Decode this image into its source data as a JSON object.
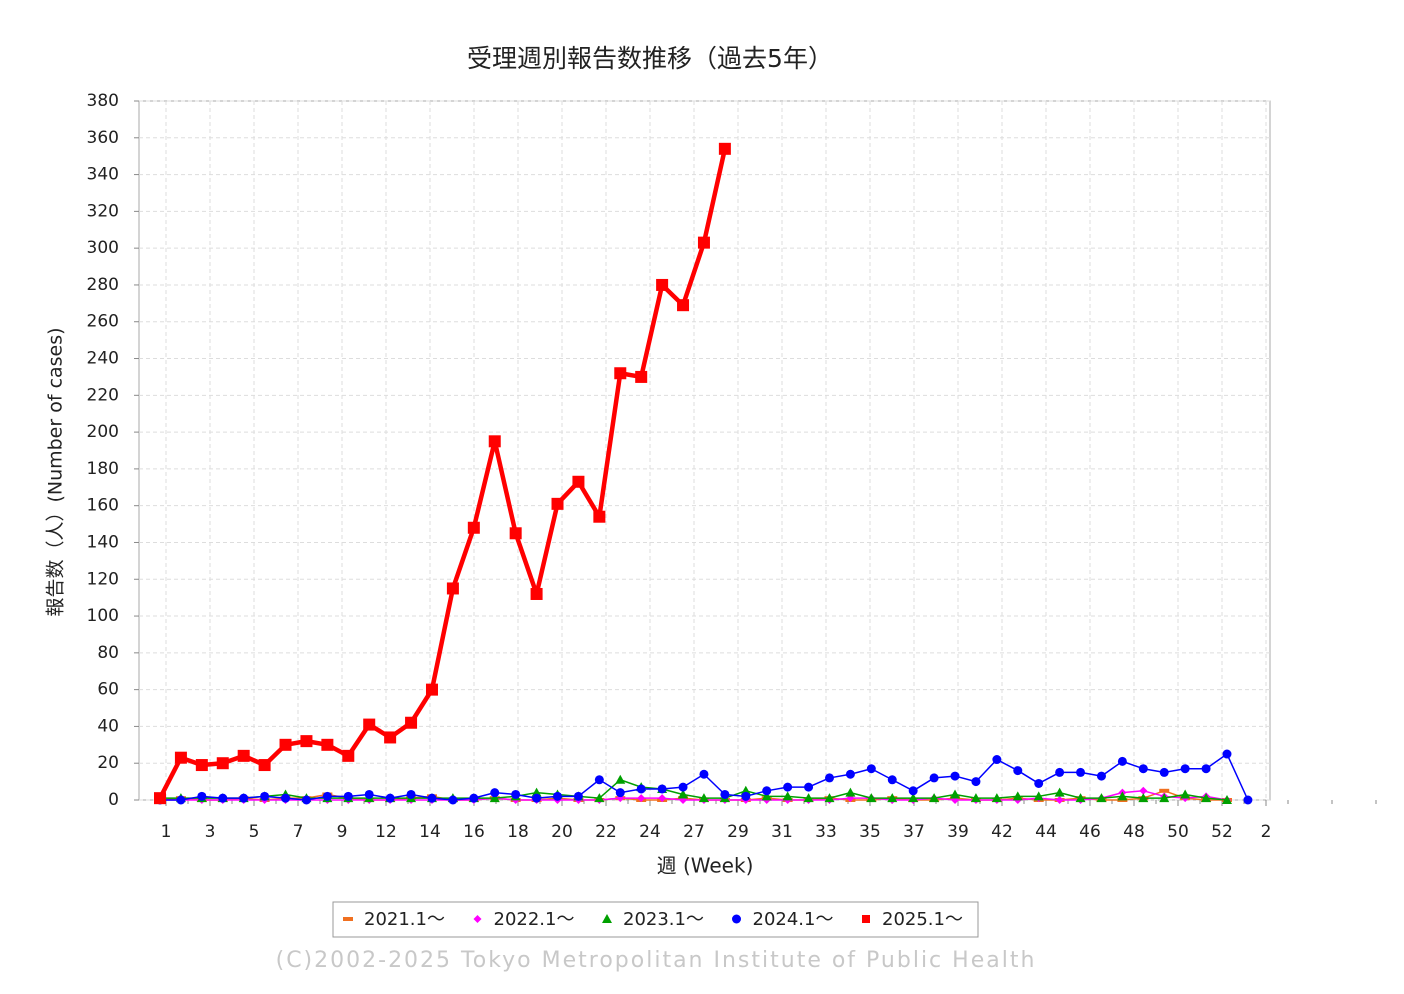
{
  "chart_data": {
    "type": "line",
    "title": "受理週別報告数推移（過去5年）",
    "x_label": "週 (Week)",
    "y_label": "報告数（人）(Number of cases)",
    "x_labels": [
      "1",
      "3",
      "5",
      "7",
      "9",
      "12",
      "14",
      "16",
      "18",
      "20",
      "22",
      "24",
      "27",
      "29",
      "31",
      "33",
      "35",
      "37",
      "39",
      "42",
      "44",
      "46",
      "48",
      "50",
      "52",
      "2"
    ],
    "ylim": [
      0,
      380
    ],
    "yticks": [
      0,
      20,
      40,
      60,
      80,
      100,
      120,
      140,
      160,
      180,
      200,
      220,
      240,
      260,
      280,
      300,
      320,
      340,
      360,
      380
    ],
    "grid": true,
    "legend": "bottom",
    "series": [
      {
        "name": "2021.1～",
        "color": "#f07020",
        "marker": "dash",
        "values": [
          0,
          1,
          0,
          0,
          1,
          0,
          1,
          1,
          3,
          1,
          0,
          0,
          1,
          2,
          0,
          0,
          1,
          0,
          0,
          1,
          0,
          0,
          1,
          0,
          0,
          1,
          0,
          0,
          0,
          1,
          0,
          0,
          1,
          0,
          0,
          1,
          0,
          0,
          1,
          0,
          0,
          1,
          0,
          0,
          1,
          0,
          0,
          1,
          5,
          1,
          0,
          0
        ]
      },
      {
        "name": "2022.1～",
        "color": "#ff00ff",
        "marker": "diamond",
        "values": [
          0,
          0,
          0,
          0,
          0,
          0,
          0,
          0,
          0,
          0,
          0,
          0,
          0,
          0,
          0,
          0,
          1,
          0,
          0,
          0,
          0,
          0,
          1,
          1,
          1,
          0,
          0,
          0,
          0,
          0,
          0,
          0,
          0,
          1,
          1,
          0,
          0,
          1,
          0,
          0,
          0,
          0,
          1,
          0,
          0,
          1,
          4,
          5,
          2,
          1,
          2,
          0
        ]
      },
      {
        "name": "2023.1～",
        "color": "#00a000",
        "marker": "triangle",
        "values": [
          1,
          1,
          1,
          1,
          1,
          2,
          3,
          1,
          1,
          1,
          1,
          1,
          1,
          1,
          1,
          1,
          1,
          2,
          4,
          3,
          2,
          1,
          11,
          7,
          6,
          3,
          1,
          1,
          5,
          2,
          2,
          1,
          1,
          4,
          1,
          1,
          1,
          1,
          3,
          1,
          1,
          2,
          2,
          4,
          1,
          1,
          2,
          1,
          1,
          3,
          1,
          0
        ]
      },
      {
        "name": "2024.1～",
        "color": "#0000ff",
        "marker": "circle",
        "values": [
          0,
          0,
          2,
          1,
          1,
          2,
          1,
          0,
          2,
          2,
          3,
          1,
          3,
          1,
          0,
          1,
          4,
          3,
          1,
          2,
          2,
          11,
          4,
          6,
          6,
          7,
          14,
          3,
          2,
          5,
          7,
          7,
          12,
          14,
          17,
          11,
          5,
          12,
          13,
          10,
          22,
          16,
          9,
          15,
          15,
          13,
          21,
          17,
          15,
          17,
          17,
          25,
          0
        ]
      },
      {
        "name": "2025.1～",
        "color": "#ff0000",
        "marker": "square",
        "values": [
          1,
          23,
          19,
          20,
          24,
          19,
          30,
          32,
          30,
          24,
          41,
          34,
          42,
          60,
          115,
          148,
          195,
          145,
          112,
          161,
          173,
          154,
          232,
          230,
          280,
          269,
          303,
          354,
          null,
          null,
          null,
          null,
          null,
          null,
          null,
          null,
          null,
          null,
          null,
          null,
          null,
          null,
          null,
          null,
          null,
          null,
          null,
          null,
          null,
          null,
          null,
          null
        ]
      }
    ],
    "footer": "(C)2002-2025 Tokyo Metropolitan Institute of Public Health"
  }
}
